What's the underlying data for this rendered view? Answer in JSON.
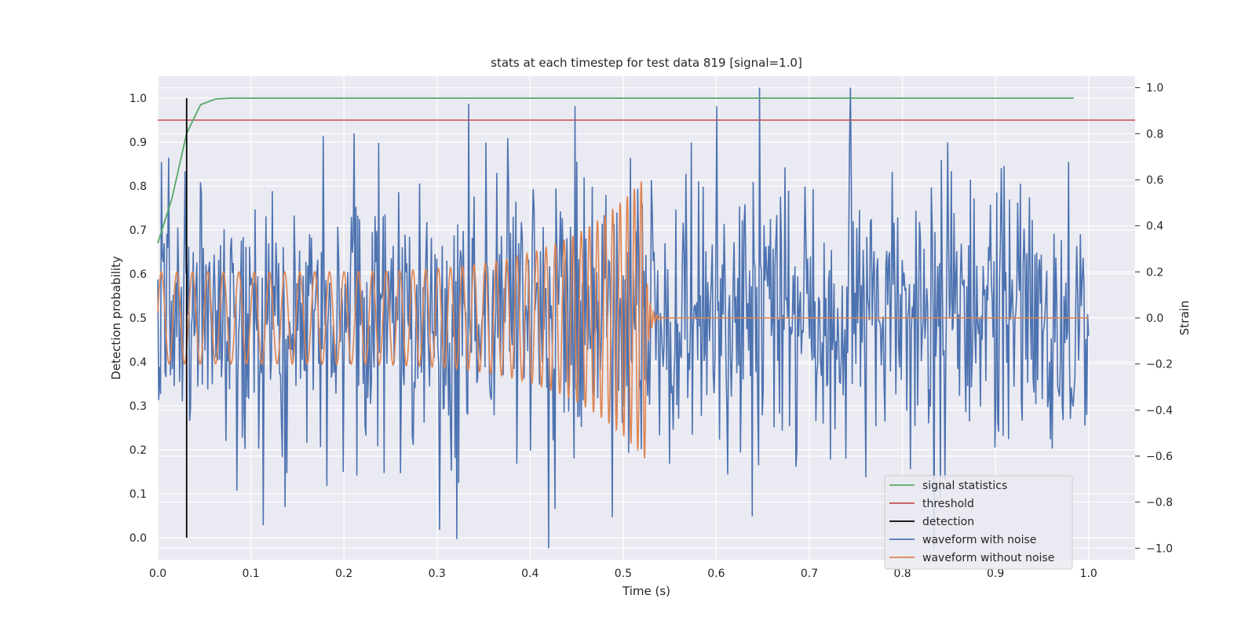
{
  "chart_data": {
    "type": "line",
    "title": "stats at each timestep for test data 819 [signal=1.0]",
    "xlabel": "Time (s)",
    "ylabel_left": "Detection probability",
    "ylabel_right": "Strain",
    "xlim": [
      0.0,
      1.05
    ],
    "ylim_left": [
      -0.05,
      1.05
    ],
    "ylim_right": [
      -1.05,
      1.05
    ],
    "grid": true,
    "legend_placement": "lower-right",
    "x_ticks": [
      "0.0",
      "0.1",
      "0.2",
      "0.3",
      "0.4",
      "0.5",
      "0.6",
      "0.7",
      "0.8",
      "0.9",
      "1.0"
    ],
    "y_ticks_left": [
      "0.0",
      "0.1",
      "0.2",
      "0.3",
      "0.4",
      "0.5",
      "0.6",
      "0.7",
      "0.8",
      "0.9",
      "1.0"
    ],
    "y_ticks_right": [
      "−1.0",
      "−0.8",
      "−0.6",
      "−0.4",
      "−0.2",
      "0.0",
      "0.2",
      "0.4",
      "0.6",
      "0.8",
      "1.0"
    ],
    "colors": {
      "signal_statistics": "#55a868",
      "threshold": "#c44e52",
      "detection": "#000000",
      "waveform_with_noise": "#4c72b0",
      "waveform_without_noise": "#dd8452",
      "background": "#eaeaf2",
      "grid": "#ffffff"
    },
    "series": [
      {
        "name": "signal statistics",
        "axis": "left",
        "x": [
          0.0,
          0.015,
          0.031,
          0.046,
          0.062,
          0.078,
          0.094,
          0.2,
          0.4,
          0.6,
          0.8,
          0.984
        ],
        "y": [
          0.67,
          0.77,
          0.92,
          0.985,
          0.998,
          1.0,
          1.0,
          1.0,
          1.0,
          1.0,
          1.0,
          1.0
        ]
      },
      {
        "name": "threshold",
        "axis": "left",
        "x": [
          0.0,
          1.05
        ],
        "y": [
          0.95,
          0.95
        ]
      },
      {
        "name": "detection",
        "axis": "left",
        "x": [
          0.031,
          0.031
        ],
        "y": [
          0.0,
          1.0
        ]
      },
      {
        "name": "waveform with noise",
        "axis": "right",
        "x_range": [
          0.0,
          1.0
        ],
        "noise_std": 0.3,
        "peaks": [
          {
            "x": 0.334,
            "y": 0.93
          },
          {
            "x": 0.448,
            "y": 0.92
          },
          {
            "x": 0.601,
            "y": 0.92
          },
          {
            "x": 0.744,
            "y": 1.0
          },
          {
            "x": 0.321,
            "y": -0.96
          },
          {
            "x": 0.303,
            "y": -0.92
          },
          {
            "x": 0.113,
            "y": -0.9
          },
          {
            "x": 0.178,
            "y": 0.79
          },
          {
            "x": 0.085,
            "y": -0.75
          }
        ]
      },
      {
        "name": "waveform without noise",
        "axis": "right",
        "x_range": [
          0.0,
          1.0
        ],
        "chirp_end": 0.525,
        "start_amplitude": 0.2,
        "peak_amplitude": 0.62,
        "start_frequency_hz": 60,
        "end_frequency_hz": 140
      }
    ]
  }
}
